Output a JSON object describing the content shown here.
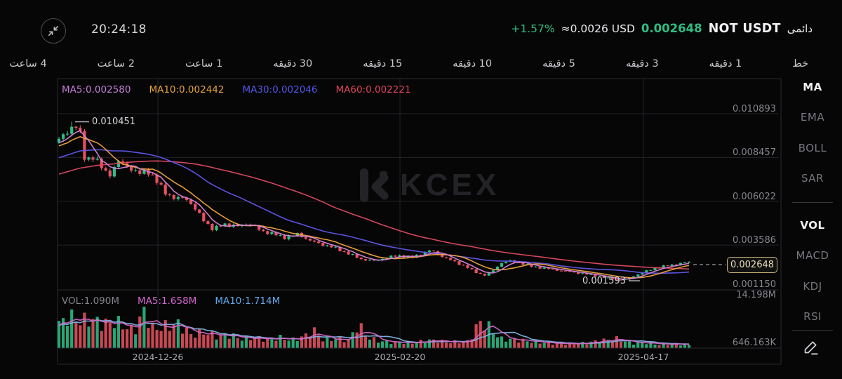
{
  "header": {
    "time": "20:24:18",
    "change_percent": "+1.57%",
    "approx_usd": "≈0.0026 USD",
    "last_price": "0.002648",
    "symbol": "NOT USDT",
    "contract_type": "دائمی"
  },
  "timeframes": [
    "خط",
    "1 دقیقه",
    "3 دقیقه",
    "5 دقیقه",
    "10 دقیقه",
    "15 دقیقه",
    "30 دقیقه",
    "1 ساعت",
    "2 ساعت",
    "4 ساعت"
  ],
  "main_indicators": [
    {
      "label": "MA5:0.002580",
      "color": "#c77fd9"
    },
    {
      "label": "MA10:0.002442",
      "color": "#e8a33c"
    },
    {
      "label": "MA30:0.002046",
      "color": "#5558e8"
    },
    {
      "label": "MA60:0.002221",
      "color": "#e0445e"
    }
  ],
  "vol_indicators": [
    {
      "label": "VOL:1.090M",
      "color": "#83838b"
    },
    {
      "label": "MA5:1.658M",
      "color": "#d468d0"
    },
    {
      "label": "MA10:1.714M",
      "color": "#5fa8e8"
    }
  ],
  "sidebar": {
    "group1": [
      "MA",
      "EMA",
      "BOLL",
      "SAR"
    ],
    "group2": [
      "VOL",
      "MACD",
      "KDJ",
      "RSI"
    ],
    "active": [
      "MA",
      "VOL"
    ],
    "active_color": "#f2f2f4",
    "inactive_color": "#76767e"
  },
  "watermark": {
    "text": "KCEX"
  },
  "palette": {
    "up": "#2ebd85",
    "down": "#e5525e",
    "ma5": "#d584d8",
    "ma10": "#f0a33c",
    "ma30": "#6157ea",
    "ma60": "#df4a60",
    "vol_ma5": "#d468c8",
    "vol_ma10": "#7fb3e0",
    "grid": "#232328",
    "border": "#2a2a30",
    "tag_border": "#cbb77e"
  },
  "chart_data": {
    "type": "candlestick+volume",
    "symbol": "NOT USDT",
    "y_ticks": [
      "0.010893",
      "0.008457",
      "0.006022",
      "0.003586",
      "0.001150"
    ],
    "x_ticks": [
      "2024-12-26",
      "2025-02-20",
      "2025-04-17"
    ],
    "high_annotation": "0.010451",
    "low_annotation": "0.001593",
    "last_price": "0.002648",
    "high_value": 0.010451,
    "low_value": 0.001593,
    "last_value": 0.002648,
    "vol_scale_max": "14.198M",
    "vol_scale_low": "646.163K",
    "candle_count": 149,
    "price_anchors": [
      [
        -0.45,
        0.0054
      ],
      [
        -0.3,
        0.0066
      ],
      [
        -0.2,
        0.0075
      ],
      [
        -0.1,
        0.0084
      ],
      [
        -0.04,
        0.009
      ],
      [
        0,
        0.0094
      ],
      [
        0.013,
        0.0099
      ],
      [
        0.024,
        0.0103
      ],
      [
        0.032,
        0.01
      ],
      [
        0.042,
        0.0082
      ],
      [
        0.052,
        0.0086
      ],
      [
        0.065,
        0.008
      ],
      [
        0.08,
        0.0075
      ],
      [
        0.095,
        0.0082
      ],
      [
        0.11,
        0.008
      ],
      [
        0.125,
        0.0075
      ],
      [
        0.14,
        0.0078
      ],
      [
        0.155,
        0.0071
      ],
      [
        0.17,
        0.0065
      ],
      [
        0.185,
        0.0061
      ],
      [
        0.2,
        0.0063
      ],
      [
        0.215,
        0.0056
      ],
      [
        0.23,
        0.005
      ],
      [
        0.245,
        0.0044
      ],
      [
        0.26,
        0.0048
      ],
      [
        0.28,
        0.0046
      ],
      [
        0.3,
        0.0048
      ],
      [
        0.32,
        0.0044
      ],
      [
        0.34,
        0.0042
      ],
      [
        0.36,
        0.004
      ],
      [
        0.38,
        0.0042
      ],
      [
        0.4,
        0.0038
      ],
      [
        0.42,
        0.0036
      ],
      [
        0.44,
        0.0034
      ],
      [
        0.46,
        0.0031
      ],
      [
        0.48,
        0.0028
      ],
      [
        0.5,
        0.0027
      ],
      [
        0.52,
        0.0029
      ],
      [
        0.54,
        0.003
      ],
      [
        0.56,
        0.0029
      ],
      [
        0.575,
        0.0031
      ],
      [
        0.59,
        0.0033
      ],
      [
        0.605,
        0.003
      ],
      [
        0.625,
        0.0027
      ],
      [
        0.645,
        0.0024
      ],
      [
        0.66,
        0.0021
      ],
      [
        0.675,
        0.0019
      ],
      [
        0.69,
        0.0022
      ],
      [
        0.702,
        0.0026
      ],
      [
        0.715,
        0.0027
      ],
      [
        0.73,
        0.0026
      ],
      [
        0.75,
        0.0024
      ],
      [
        0.77,
        0.0023
      ],
      [
        0.79,
        0.0022
      ],
      [
        0.81,
        0.0021
      ],
      [
        0.83,
        0.002
      ],
      [
        0.85,
        0.0019
      ],
      [
        0.87,
        0.00175
      ],
      [
        0.887,
        0.00165
      ],
      [
        0.9,
        0.0017
      ],
      [
        0.915,
        0.0019
      ],
      [
        0.93,
        0.0021
      ],
      [
        0.945,
        0.0023
      ],
      [
        0.96,
        0.0024
      ],
      [
        0.975,
        0.0025
      ],
      [
        1,
        0.002648
      ]
    ],
    "volume_anchors_m": [
      [
        -0.45,
        7
      ],
      [
        -0.2,
        8
      ],
      [
        -0.05,
        8.5
      ],
      [
        0,
        9
      ],
      [
        0.015,
        12
      ],
      [
        0.035,
        10
      ],
      [
        0.05,
        11
      ],
      [
        0.07,
        9
      ],
      [
        0.09,
        10
      ],
      [
        0.105,
        8
      ],
      [
        0.12,
        6.5
      ],
      [
        0.135,
        14
      ],
      [
        0.15,
        7
      ],
      [
        0.165,
        8
      ],
      [
        0.19,
        9
      ],
      [
        0.21,
        5
      ],
      [
        0.23,
        6
      ],
      [
        0.25,
        4.5
      ],
      [
        0.27,
        5
      ],
      [
        0.29,
        3.5
      ],
      [
        0.31,
        4
      ],
      [
        0.33,
        3.2
      ],
      [
        0.35,
        4
      ],
      [
        0.37,
        3
      ],
      [
        0.39,
        4.5
      ],
      [
        0.405,
        6.5
      ],
      [
        0.42,
        3
      ],
      [
        0.44,
        3.5
      ],
      [
        0.46,
        3
      ],
      [
        0.475,
        9
      ],
      [
        0.49,
        4
      ],
      [
        0.51,
        2.5
      ],
      [
        0.53,
        2.2
      ],
      [
        0.56,
        2
      ],
      [
        0.59,
        3
      ],
      [
        0.62,
        2.2
      ],
      [
        0.65,
        2.5
      ],
      [
        0.668,
        10
      ],
      [
        0.682,
        8
      ],
      [
        0.7,
        3.5
      ],
      [
        0.73,
        3
      ],
      [
        0.75,
        2.5
      ],
      [
        0.77,
        2
      ],
      [
        0.8,
        1.6
      ],
      [
        0.83,
        1.8
      ],
      [
        0.86,
        2.8
      ],
      [
        0.885,
        3.5
      ],
      [
        0.91,
        1.8
      ],
      [
        0.93,
        2.2
      ],
      [
        0.95,
        1.3
      ],
      [
        0.97,
        1.7
      ],
      [
        1,
        1.2
      ]
    ]
  }
}
